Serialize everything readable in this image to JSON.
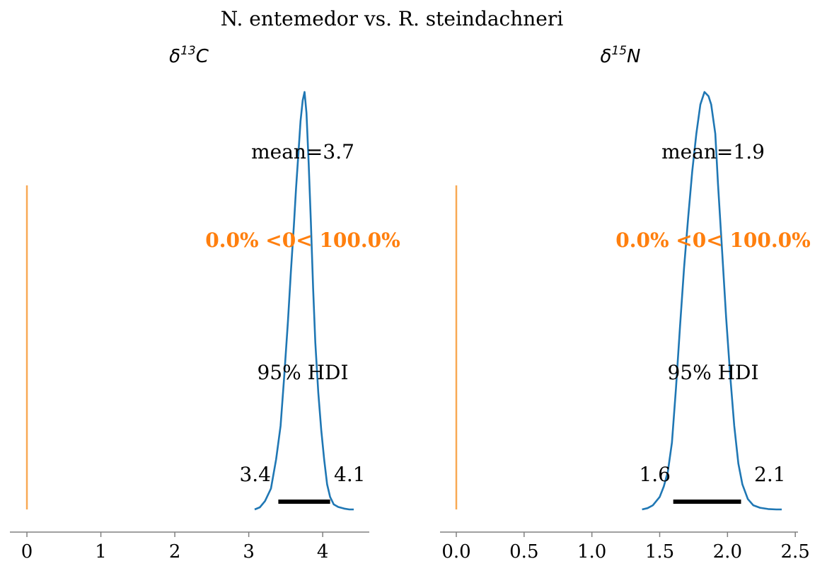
{
  "figure": {
    "suptitle": "N. entemedor vs. R. steindachneri"
  },
  "chart_data": [
    {
      "type": "area",
      "title_symbol": "δ",
      "title_sup": "13",
      "title_var": "C",
      "xlim": [
        -0.23,
        4.63
      ],
      "ticks": [
        0,
        1,
        2,
        3,
        4
      ],
      "tick_labels": [
        "0",
        "1",
        "2",
        "3",
        "4"
      ],
      "mean_label": "mean=3.7",
      "ref_label": "0.0% <0< 100.0%",
      "hdi_label": "95% HDI",
      "hdi": [
        3.4,
        4.1
      ],
      "hdi_low_label": "3.4",
      "hdi_high_label": "4.1",
      "reference_value": 0,
      "density": {
        "x": [
          3.08,
          3.15,
          3.22,
          3.3,
          3.37,
          3.43,
          3.48,
          3.53,
          3.57,
          3.61,
          3.64,
          3.67,
          3.7,
          3.73,
          3.755,
          3.78,
          3.81,
          3.84,
          3.87,
          3.9,
          3.94,
          3.98,
          4.02,
          4.06,
          4.1,
          4.15,
          4.21,
          4.29,
          4.36,
          4.42
        ],
        "y": [
          0.0,
          0.005,
          0.02,
          0.05,
          0.12,
          0.2,
          0.32,
          0.45,
          0.57,
          0.68,
          0.77,
          0.85,
          0.93,
          0.98,
          1.0,
          0.95,
          0.83,
          0.69,
          0.53,
          0.4,
          0.28,
          0.19,
          0.12,
          0.06,
          0.03,
          0.012,
          0.006,
          0.002,
          0.0,
          0.0
        ]
      }
    },
    {
      "type": "area",
      "title_symbol": "δ",
      "title_sup": "15",
      "title_var": "N",
      "xlim": [
        -0.12,
        2.52
      ],
      "ticks": [
        0.0,
        0.5,
        1.0,
        1.5,
        2.0,
        2.5
      ],
      "tick_labels": [
        "0.0",
        "0.5",
        "1.0",
        "1.5",
        "2.0",
        "2.5"
      ],
      "mean_label": "mean=1.9",
      "ref_label": "0.0% <0< 100.0%",
      "hdi_label": "95% HDI",
      "hdi": [
        1.6,
        2.1
      ],
      "hdi_low_label": "1.6",
      "hdi_high_label": "2.1",
      "reference_value": 0,
      "density": {
        "x": [
          1.37,
          1.41,
          1.45,
          1.5,
          1.53,
          1.56,
          1.59,
          1.62,
          1.65,
          1.68,
          1.71,
          1.74,
          1.77,
          1.8,
          1.83,
          1.86,
          1.88,
          1.91,
          1.93,
          1.96,
          1.99,
          2.02,
          2.05,
          2.08,
          2.11,
          2.15,
          2.19,
          2.24,
          2.3,
          2.36,
          2.4
        ],
        "y": [
          0.0,
          0.003,
          0.01,
          0.03,
          0.055,
          0.09,
          0.16,
          0.29,
          0.44,
          0.58,
          0.7,
          0.81,
          0.9,
          0.97,
          1.0,
          0.99,
          0.97,
          0.9,
          0.78,
          0.62,
          0.46,
          0.32,
          0.2,
          0.11,
          0.06,
          0.025,
          0.01,
          0.004,
          0.001,
          0.0,
          0.0
        ]
      }
    }
  ],
  "colors": {
    "density": "#1f77b4",
    "reference_line": "#f8a954",
    "reference_text": "#ff7f0e",
    "hdi_bar": "#000000",
    "axis": "#808080",
    "text": "#000000"
  }
}
